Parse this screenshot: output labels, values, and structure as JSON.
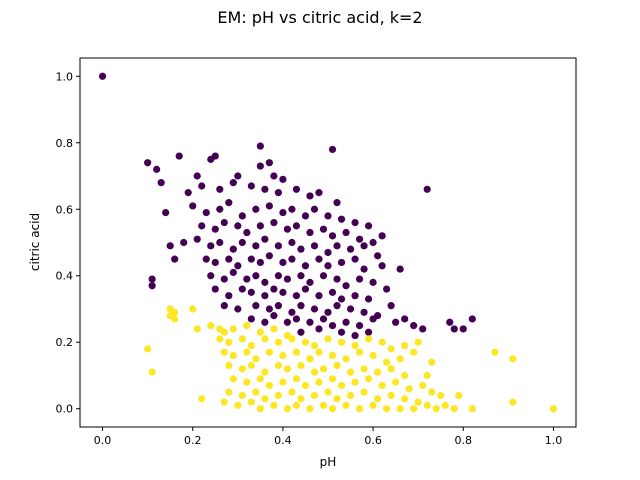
{
  "chart_data": {
    "type": "scatter",
    "title": "EM: pH vs citric acid, k=2",
    "xlabel": "pH",
    "ylabel": "citric acid",
    "xlim": [
      -0.05,
      1.05
    ],
    "ylim": [
      -0.055,
      1.055
    ],
    "xticks": [
      "0.0",
      "0.2",
      "0.4",
      "0.6",
      "0.8",
      "1.0"
    ],
    "yticks": [
      "0.0",
      "0.2",
      "0.4",
      "0.6",
      "0.8",
      "1.0"
    ],
    "grid": false,
    "legend": "none",
    "series": [
      {
        "color": "#440154",
        "points": [
          [
            0.0,
            1.0
          ],
          [
            0.35,
            0.79
          ],
          [
            0.51,
            0.78
          ],
          [
            0.1,
            0.74
          ],
          [
            0.37,
            0.74
          ],
          [
            0.72,
            0.66
          ],
          [
            0.12,
            0.72
          ],
          [
            0.17,
            0.76
          ],
          [
            0.24,
            0.75
          ],
          [
            0.25,
            0.76
          ],
          [
            0.13,
            0.68
          ],
          [
            0.35,
            0.73
          ],
          [
            0.38,
            0.7
          ],
          [
            0.4,
            0.69
          ],
          [
            0.21,
            0.7
          ],
          [
            0.3,
            0.7
          ],
          [
            0.19,
            0.65
          ],
          [
            0.22,
            0.67
          ],
          [
            0.26,
            0.66
          ],
          [
            0.29,
            0.68
          ],
          [
            0.33,
            0.67
          ],
          [
            0.36,
            0.66
          ],
          [
            0.39,
            0.65
          ],
          [
            0.43,
            0.66
          ],
          [
            0.46,
            0.64
          ],
          [
            0.48,
            0.65
          ],
          [
            0.52,
            0.62
          ],
          [
            0.14,
            0.59
          ],
          [
            0.2,
            0.61
          ],
          [
            0.23,
            0.59
          ],
          [
            0.26,
            0.6
          ],
          [
            0.28,
            0.62
          ],
          [
            0.31,
            0.58
          ],
          [
            0.34,
            0.6
          ],
          [
            0.37,
            0.61
          ],
          [
            0.4,
            0.59
          ],
          [
            0.42,
            0.6
          ],
          [
            0.45,
            0.58
          ],
          [
            0.47,
            0.6
          ],
          [
            0.5,
            0.58
          ],
          [
            0.53,
            0.57
          ],
          [
            0.56,
            0.56
          ],
          [
            0.59,
            0.55
          ],
          [
            0.22,
            0.55
          ],
          [
            0.25,
            0.54
          ],
          [
            0.27,
            0.56
          ],
          [
            0.3,
            0.55
          ],
          [
            0.32,
            0.53
          ],
          [
            0.35,
            0.55
          ],
          [
            0.38,
            0.56
          ],
          [
            0.41,
            0.54
          ],
          [
            0.43,
            0.55
          ],
          [
            0.46,
            0.53
          ],
          [
            0.49,
            0.54
          ],
          [
            0.51,
            0.52
          ],
          [
            0.54,
            0.53
          ],
          [
            0.57,
            0.51
          ],
          [
            0.62,
            0.52
          ],
          [
            0.15,
            0.49
          ],
          [
            0.18,
            0.5
          ],
          [
            0.21,
            0.51
          ],
          [
            0.24,
            0.49
          ],
          [
            0.26,
            0.5
          ],
          [
            0.29,
            0.48
          ],
          [
            0.31,
            0.5
          ],
          [
            0.34,
            0.49
          ],
          [
            0.36,
            0.51
          ],
          [
            0.39,
            0.49
          ],
          [
            0.42,
            0.5
          ],
          [
            0.44,
            0.48
          ],
          [
            0.47,
            0.49
          ],
          [
            0.5,
            0.47
          ],
          [
            0.52,
            0.49
          ],
          [
            0.55,
            0.48
          ],
          [
            0.58,
            0.49
          ],
          [
            0.6,
            0.5
          ],
          [
            0.61,
            0.46
          ],
          [
            0.16,
            0.45
          ],
          [
            0.23,
            0.45
          ],
          [
            0.25,
            0.44
          ],
          [
            0.28,
            0.45
          ],
          [
            0.3,
            0.43
          ],
          [
            0.33,
            0.45
          ],
          [
            0.35,
            0.44
          ],
          [
            0.37,
            0.46
          ],
          [
            0.4,
            0.44
          ],
          [
            0.42,
            0.45
          ],
          [
            0.45,
            0.43
          ],
          [
            0.48,
            0.45
          ],
          [
            0.5,
            0.43
          ],
          [
            0.53,
            0.44
          ],
          [
            0.56,
            0.45
          ],
          [
            0.58,
            0.42
          ],
          [
            0.62,
            0.43
          ],
          [
            0.66,
            0.42
          ],
          [
            0.11,
            0.39
          ],
          [
            0.11,
            0.37
          ],
          [
            0.24,
            0.4
          ],
          [
            0.27,
            0.39
          ],
          [
            0.29,
            0.41
          ],
          [
            0.32,
            0.39
          ],
          [
            0.34,
            0.4
          ],
          [
            0.36,
            0.38
          ],
          [
            0.39,
            0.4
          ],
          [
            0.41,
            0.39
          ],
          [
            0.44,
            0.4
          ],
          [
            0.46,
            0.38
          ],
          [
            0.49,
            0.4
          ],
          [
            0.52,
            0.39
          ],
          [
            0.54,
            0.37
          ],
          [
            0.57,
            0.39
          ],
          [
            0.6,
            0.38
          ],
          [
            0.63,
            0.36
          ],
          [
            0.25,
            0.36
          ],
          [
            0.28,
            0.34
          ],
          [
            0.31,
            0.36
          ],
          [
            0.33,
            0.35
          ],
          [
            0.36,
            0.34
          ],
          [
            0.38,
            0.36
          ],
          [
            0.4,
            0.35
          ],
          [
            0.43,
            0.34
          ],
          [
            0.45,
            0.36
          ],
          [
            0.48,
            0.34
          ],
          [
            0.51,
            0.35
          ],
          [
            0.53,
            0.33
          ],
          [
            0.56,
            0.34
          ],
          [
            0.59,
            0.33
          ],
          [
            0.64,
            0.31
          ],
          [
            0.27,
            0.31
          ],
          [
            0.3,
            0.3
          ],
          [
            0.34,
            0.31
          ],
          [
            0.37,
            0.3
          ],
          [
            0.39,
            0.31
          ],
          [
            0.42,
            0.29
          ],
          [
            0.44,
            0.31
          ],
          [
            0.47,
            0.3
          ],
          [
            0.5,
            0.29
          ],
          [
            0.52,
            0.31
          ],
          [
            0.55,
            0.3
          ],
          [
            0.58,
            0.29
          ],
          [
            0.61,
            0.28
          ],
          [
            0.67,
            0.27
          ],
          [
            0.33,
            0.27
          ],
          [
            0.36,
            0.26
          ],
          [
            0.38,
            0.28
          ],
          [
            0.41,
            0.26
          ],
          [
            0.43,
            0.27
          ],
          [
            0.46,
            0.26
          ],
          [
            0.49,
            0.27
          ],
          [
            0.51,
            0.25
          ],
          [
            0.54,
            0.26
          ],
          [
            0.57,
            0.25
          ],
          [
            0.6,
            0.27
          ],
          [
            0.65,
            0.26
          ],
          [
            0.69,
            0.25
          ],
          [
            0.77,
            0.26
          ],
          [
            0.78,
            0.24
          ],
          [
            0.8,
            0.24
          ],
          [
            0.82,
            0.27
          ],
          [
            0.44,
            0.23
          ],
          [
            0.48,
            0.24
          ],
          [
            0.53,
            0.23
          ],
          [
            0.56,
            0.22
          ],
          [
            0.59,
            0.23
          ],
          [
            0.71,
            0.24
          ]
        ]
      },
      {
        "color": "#fde725",
        "points": [
          [
            0.15,
            0.3
          ],
          [
            0.16,
            0.29
          ],
          [
            0.15,
            0.28
          ],
          [
            0.16,
            0.27
          ],
          [
            0.2,
            0.3
          ],
          [
            0.21,
            0.24
          ],
          [
            0.24,
            0.25
          ],
          [
            0.26,
            0.24
          ],
          [
            0.1,
            0.18
          ],
          [
            0.11,
            0.11
          ],
          [
            0.22,
            0.03
          ],
          [
            0.27,
            0.23
          ],
          [
            0.29,
            0.24
          ],
          [
            0.32,
            0.25
          ],
          [
            0.35,
            0.23
          ],
          [
            0.38,
            0.24
          ],
          [
            0.41,
            0.22
          ],
          [
            0.26,
            0.21
          ],
          [
            0.28,
            0.2
          ],
          [
            0.31,
            0.21
          ],
          [
            0.33,
            0.19
          ],
          [
            0.36,
            0.21
          ],
          [
            0.39,
            0.2
          ],
          [
            0.42,
            0.21
          ],
          [
            0.45,
            0.2
          ],
          [
            0.47,
            0.19
          ],
          [
            0.5,
            0.21
          ],
          [
            0.53,
            0.2
          ],
          [
            0.56,
            0.19
          ],
          [
            0.59,
            0.21
          ],
          [
            0.62,
            0.2
          ],
          [
            0.64,
            0.18
          ],
          [
            0.67,
            0.19
          ],
          [
            0.69,
            0.17
          ],
          [
            0.27,
            0.17
          ],
          [
            0.29,
            0.16
          ],
          [
            0.32,
            0.17
          ],
          [
            0.34,
            0.15
          ],
          [
            0.37,
            0.17
          ],
          [
            0.4,
            0.16
          ],
          [
            0.43,
            0.17
          ],
          [
            0.46,
            0.15
          ],
          [
            0.48,
            0.17
          ],
          [
            0.51,
            0.16
          ],
          [
            0.54,
            0.15
          ],
          [
            0.57,
            0.17
          ],
          [
            0.6,
            0.16
          ],
          [
            0.63,
            0.14
          ],
          [
            0.66,
            0.15
          ],
          [
            0.28,
            0.13
          ],
          [
            0.31,
            0.12
          ],
          [
            0.33,
            0.13
          ],
          [
            0.36,
            0.11
          ],
          [
            0.39,
            0.13
          ],
          [
            0.41,
            0.12
          ],
          [
            0.44,
            0.13
          ],
          [
            0.47,
            0.11
          ],
          [
            0.49,
            0.12
          ],
          [
            0.52,
            0.13
          ],
          [
            0.55,
            0.11
          ],
          [
            0.58,
            0.12
          ],
          [
            0.61,
            0.11
          ],
          [
            0.64,
            0.12
          ],
          [
            0.67,
            0.1
          ],
          [
            0.29,
            0.09
          ],
          [
            0.32,
            0.08
          ],
          [
            0.35,
            0.09
          ],
          [
            0.37,
            0.07
          ],
          [
            0.4,
            0.08
          ],
          [
            0.43,
            0.09
          ],
          [
            0.45,
            0.07
          ],
          [
            0.48,
            0.08
          ],
          [
            0.51,
            0.09
          ],
          [
            0.53,
            0.07
          ],
          [
            0.56,
            0.08
          ],
          [
            0.59,
            0.09
          ],
          [
            0.62,
            0.07
          ],
          [
            0.65,
            0.08
          ],
          [
            0.68,
            0.06
          ],
          [
            0.71,
            0.07
          ],
          [
            0.73,
            0.05
          ],
          [
            0.75,
            0.04
          ],
          [
            0.28,
            0.05
          ],
          [
            0.31,
            0.04
          ],
          [
            0.34,
            0.05
          ],
          [
            0.36,
            0.03
          ],
          [
            0.39,
            0.04
          ],
          [
            0.42,
            0.05
          ],
          [
            0.44,
            0.03
          ],
          [
            0.47,
            0.04
          ],
          [
            0.5,
            0.05
          ],
          [
            0.52,
            0.03
          ],
          [
            0.55,
            0.04
          ],
          [
            0.58,
            0.05
          ],
          [
            0.61,
            0.03
          ],
          [
            0.64,
            0.04
          ],
          [
            0.67,
            0.03
          ],
          [
            0.7,
            0.02
          ],
          [
            0.27,
            0.02
          ],
          [
            0.3,
            0.01
          ],
          [
            0.33,
            0.02
          ],
          [
            0.35,
            0.0
          ],
          [
            0.38,
            0.01
          ],
          [
            0.41,
            0.0
          ],
          [
            0.43,
            0.01
          ],
          [
            0.46,
            0.0
          ],
          [
            0.49,
            0.01
          ],
          [
            0.51,
            0.0
          ],
          [
            0.54,
            0.01
          ],
          [
            0.57,
            0.0
          ],
          [
            0.6,
            0.01
          ],
          [
            0.63,
            0.0
          ],
          [
            0.66,
            0.0
          ],
          [
            0.69,
            0.0
          ],
          [
            0.72,
            0.01
          ],
          [
            0.74,
            0.0
          ],
          [
            0.76,
            0.01
          ],
          [
            0.78,
            0.0
          ],
          [
            0.82,
            0.0
          ],
          [
            0.79,
            0.04
          ],
          [
            0.87,
            0.17
          ],
          [
            0.91,
            0.15
          ],
          [
            0.91,
            0.02
          ],
          [
            1.0,
            0.0
          ],
          [
            0.73,
            0.14
          ],
          [
            0.7,
            0.2
          ],
          [
            0.72,
            0.1
          ]
        ]
      }
    ]
  }
}
